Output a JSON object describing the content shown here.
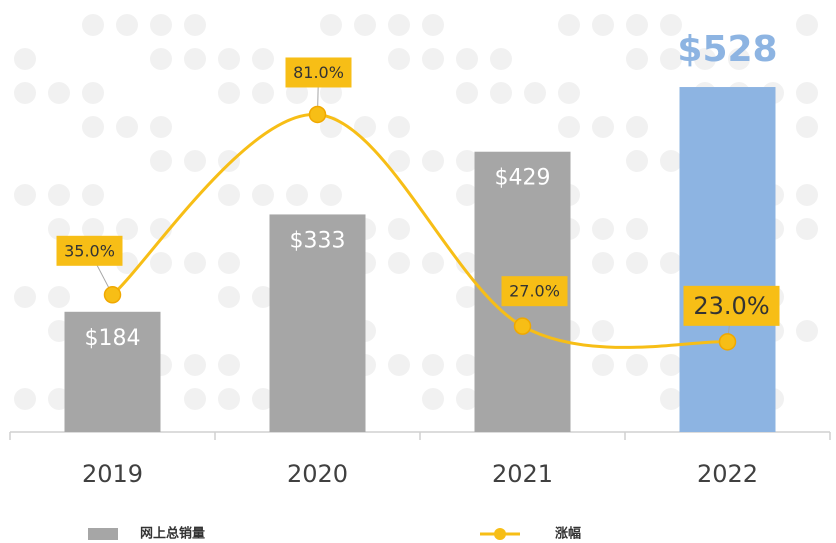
{
  "chart_data": {
    "type": "bar",
    "categories": [
      "2019",
      "2020",
      "2021",
      "2022"
    ],
    "series": [
      {
        "name": "网上总销量",
        "type": "bar",
        "color": "#a6a6a6",
        "colors": [
          "#a6a6a6",
          "#a6a6a6",
          "#a6a6a6",
          "#8db4e2"
        ],
        "values": [
          184,
          333,
          429,
          528
        ],
        "value_labels": [
          "$184",
          "$333",
          "$429",
          "$528"
        ]
      },
      {
        "name": "涨幅",
        "type": "line",
        "color": "#f7be16",
        "axis": "y2",
        "values": [
          35,
          81,
          27,
          23
        ],
        "value_labels": [
          "35.0%",
          "81.0%",
          "27.0%",
          "23.0%"
        ]
      }
    ],
    "ylim": [
      0,
      600
    ],
    "y2lim": [
      0,
      100
    ],
    "legend": "bottom"
  }
}
